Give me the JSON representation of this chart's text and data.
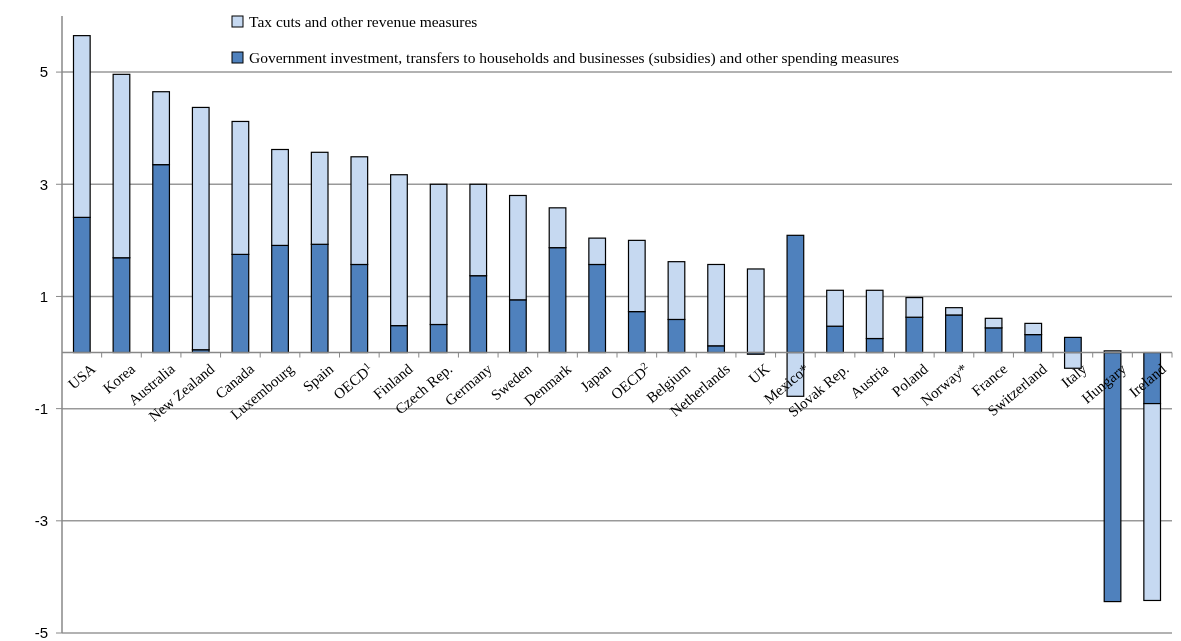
{
  "chart_data": {
    "type": "bar",
    "stacked": true,
    "categories": [
      "USA",
      "Korea",
      "Australia",
      "New Zealand",
      "Canada",
      "Luxembourg",
      "Spain",
      "OECD$^{1}$",
      "Finland",
      "Czech Rep.",
      "Germany",
      "Sweden",
      "Denmark",
      "Japan",
      "OECD$^{2}$",
      "Belgium",
      "Netherlands",
      "UK",
      "Mexico*",
      "Slovak Rep.",
      "Austria",
      "Poland",
      "Norway*",
      "France",
      "Switzerland",
      "Italy",
      "Hungary",
      "Ireland"
    ],
    "series": [
      {
        "name": "Government investment, transfers to households and businesses (subsidies) and other spending measures",
        "color": "#4f81bd",
        "values": [
          2.41,
          1.69,
          3.35,
          0.05,
          1.75,
          1.91,
          1.93,
          1.57,
          0.48,
          0.5,
          1.37,
          0.94,
          1.87,
          1.57,
          0.73,
          0.59,
          0.12,
          -0.03,
          2.09,
          0.47,
          0.25,
          0.63,
          0.67,
          0.44,
          0.32,
          0.27,
          -4.44,
          -0.91
        ]
      },
      {
        "name": "Tax cuts and other revenue measures",
        "color": "#c6d9f1",
        "values": [
          3.24,
          3.27,
          1.3,
          4.32,
          2.37,
          1.71,
          1.64,
          1.92,
          2.69,
          2.5,
          1.63,
          1.86,
          0.71,
          0.47,
          1.27,
          1.03,
          1.45,
          1.49,
          -0.78,
          0.64,
          0.86,
          0.35,
          0.13,
          0.17,
          0.2,
          -0.28,
          0.03,
          -3.51
        ]
      }
    ],
    "ylim": [
      -5,
      6
    ],
    "yticks": [
      5,
      3,
      1,
      -1,
      -3,
      -5
    ],
    "grid": "y",
    "legend": "top"
  }
}
